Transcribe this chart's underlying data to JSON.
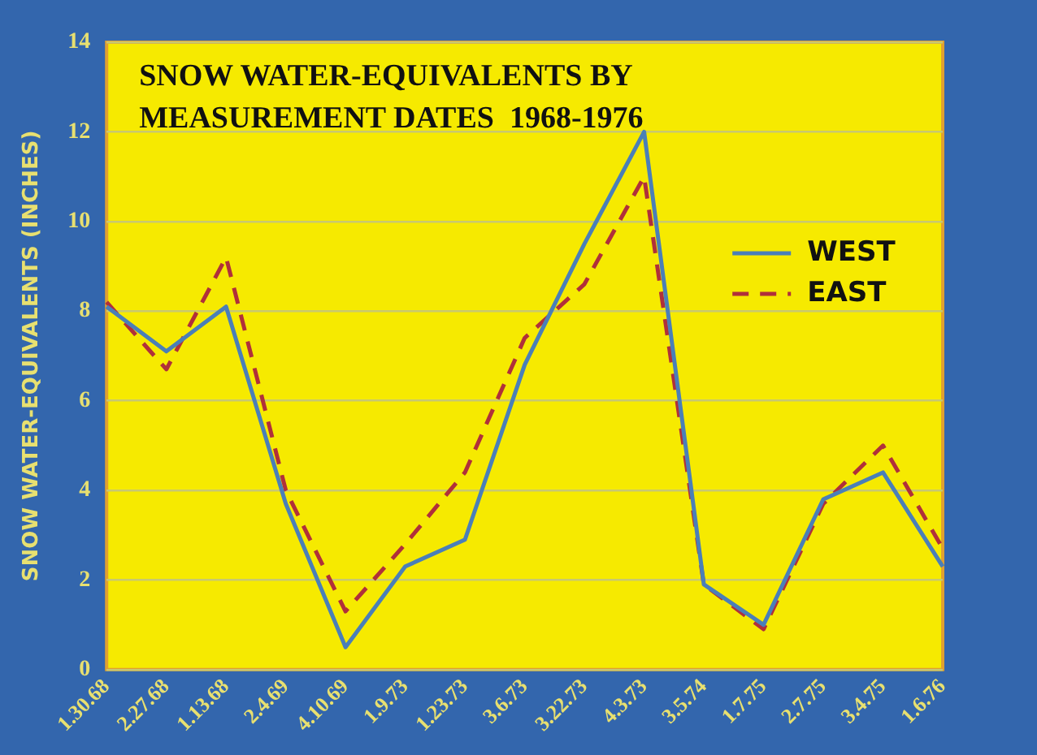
{
  "chart_data": {
    "type": "line",
    "title": "SNOW WATER-EQUIVALENTS BY\nMEASUREMENT DATES  1968-1976",
    "ylabel": "SNOW WATER-EQUIVALENTS (INCHES)",
    "categories": [
      "1.30.68",
      "2.27.68",
      "1.13.68",
      "2.4.69",
      "4.10.69",
      "1.9.73",
      "1.23.73",
      "3.6.73",
      "3.22.73",
      "4.3.73",
      "3.5.74",
      "1.7.75",
      "2.7.75",
      "3.4.75",
      "1.6.76"
    ],
    "series": [
      {
        "name": "WEST",
        "color": "#4a7fb8",
        "line_style": "solid",
        "values": [
          8.1,
          7.1,
          8.1,
          3.7,
          0.5,
          2.3,
          2.9,
          6.8,
          9.5,
          12.0,
          1.9,
          1.0,
          3.8,
          4.4,
          2.3
        ]
      },
      {
        "name": "EAST",
        "color": "#b0303a",
        "line_style": "dashed",
        "values": [
          8.2,
          6.7,
          9.2,
          4.0,
          1.3,
          2.8,
          4.4,
          7.4,
          8.6,
          11.0,
          1.9,
          0.9,
          3.7,
          5.0,
          2.7
        ]
      }
    ],
    "ylim": [
      0,
      14
    ],
    "yticks": [
      0,
      2,
      4,
      6,
      8,
      10,
      12,
      14
    ],
    "grid": "y",
    "legend": "right",
    "marker": "none"
  }
}
